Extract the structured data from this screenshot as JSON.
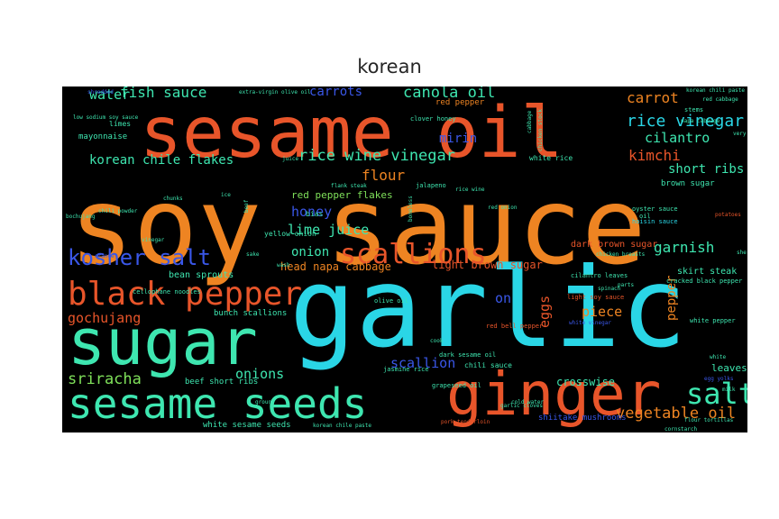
{
  "chart_data": {
    "type": "wordcloud",
    "title": "korean",
    "background": "#000000",
    "palette": {
      "orange": "#ee8422",
      "red_orange": "#e8552a",
      "cyan": "#2ad6e6",
      "teal": "#3ee6b0",
      "green": "#7fe05a",
      "blue": "#3a57e8"
    },
    "words": [
      {
        "text": "soy sauce",
        "color": "#ee8422"
      },
      {
        "text": "garlic",
        "color": "#2ad6e6"
      },
      {
        "text": "sesame oil",
        "color": "#e8552a"
      },
      {
        "text": "sugar",
        "color": "#3ee6b0"
      },
      {
        "text": "ginger",
        "color": "#e8552a"
      },
      {
        "text": "sesame seeds",
        "color": "#3ee6b0"
      },
      {
        "text": "black pepper",
        "color": "#e8552a"
      },
      {
        "text": "scallions",
        "color": "#e8552a"
      },
      {
        "text": "kosher salt",
        "color": "#3a57e8"
      },
      {
        "text": "salt",
        "color": "#3ee6b0"
      },
      {
        "text": "rice vinegar",
        "color": "#2ad6e6"
      },
      {
        "text": "canola oil",
        "color": "#3ee6b0"
      },
      {
        "text": "fish sauce",
        "color": "#3ee6b0"
      },
      {
        "text": "rice wine vinegar",
        "color": "#3ee6b0"
      },
      {
        "text": "korean chile flakes",
        "color": "#3ee6b0"
      },
      {
        "text": "vegetable oil",
        "color": "#ee8422"
      },
      {
        "text": "sriracha",
        "color": "#7fe05a"
      },
      {
        "text": "gochujang",
        "color": "#e8552a"
      },
      {
        "text": "carrots",
        "color": "#3a57e8"
      },
      {
        "text": "carrot",
        "color": "#ee8422"
      },
      {
        "text": "cilantro",
        "color": "#3ee6b0"
      },
      {
        "text": "water",
        "color": "#3ee6b0"
      },
      {
        "text": "mirin",
        "color": "#3a57e8"
      },
      {
        "text": "kimchi",
        "color": "#e8552a"
      },
      {
        "text": "flour",
        "color": "#ee8422"
      },
      {
        "text": "honey",
        "color": "#3a57e8"
      },
      {
        "text": "lime juice",
        "color": "#3ee6b0"
      },
      {
        "text": "onion",
        "color": "#3ee6b0"
      },
      {
        "text": "onions",
        "color": "#3ee6b0"
      },
      {
        "text": "garnish",
        "color": "#3ee6b0"
      },
      {
        "text": "short ribs",
        "color": "#3ee6b0"
      },
      {
        "text": "scallion",
        "color": "#3a57e8"
      },
      {
        "text": "eggs",
        "color": "#e8552a"
      },
      {
        "text": "piece",
        "color": "#ee8422"
      },
      {
        "text": "pepper",
        "color": "#ee8422"
      },
      {
        "text": "on",
        "color": "#3a57e8"
      },
      {
        "text": "head napa cabbage",
        "color": "#ee8422"
      },
      {
        "text": "light brown sugar",
        "color": "#e8552a"
      },
      {
        "text": "red pepper flakes",
        "color": "#7fe05a"
      },
      {
        "text": "crosswise",
        "color": "#3ee6b0"
      },
      {
        "text": "leaves",
        "color": "#3ee6b0"
      },
      {
        "text": "bean sprouts",
        "color": "#3ee6b0"
      },
      {
        "text": "dark brown sugar",
        "color": "#e8552a"
      },
      {
        "text": "skirt steak",
        "color": "#3ee6b0"
      },
      {
        "text": "brown sugar",
        "color": "#3ee6b0"
      },
      {
        "text": "beef short ribs",
        "color": "#3ee6b0"
      },
      {
        "text": "white sesame seeds",
        "color": "#3ee6b0"
      },
      {
        "text": "bunch scallions",
        "color": "#3ee6b0"
      },
      {
        "text": "white rice",
        "color": "#3ee6b0"
      },
      {
        "text": "mayonnaise",
        "color": "#3ee6b0"
      },
      {
        "text": "limes",
        "color": "#3ee6b0"
      },
      {
        "text": "chili sauce",
        "color": "#3ee6b0"
      },
      {
        "text": "oyster sauce",
        "color": "#3ee6b0"
      },
      {
        "text": "hoisin sauce",
        "color": "#2ad6e6"
      },
      {
        "text": "cellophane noodles",
        "color": "#3ee6b0"
      },
      {
        "text": "cracked black pepper",
        "color": "#3ee6b0"
      },
      {
        "text": "white pepper",
        "color": "#3ee6b0"
      },
      {
        "text": "chili powder",
        "color": "#3ee6b0"
      },
      {
        "text": "shiitake mushrooms",
        "color": "#3a57e8"
      },
      {
        "text": "korean chili paste",
        "color": "#3ee6b0"
      },
      {
        "text": "red cabbage",
        "color": "#3ee6b0"
      },
      {
        "text": "stems",
        "color": "#3ee6b0"
      },
      {
        "text": "napa cabbage",
        "color": "#3ee6b0"
      },
      {
        "text": "potatoes",
        "color": "#e8552a"
      },
      {
        "text": "sherry",
        "color": "#3ee6b0"
      },
      {
        "text": "oil",
        "color": "#3ee6b0"
      },
      {
        "text": "jalapeno",
        "color": "#3ee6b0"
      },
      {
        "text": "yellow onion",
        "color": "#3ee6b0"
      },
      {
        "text": "bias",
        "color": "#3ee6b0"
      },
      {
        "text": "red pepper",
        "color": "#ee8422"
      },
      {
        "text": "clover honey",
        "color": "#3ee6b0"
      },
      {
        "text": "light soy sauce",
        "color": "#e8552a"
      },
      {
        "text": "red bell pepper",
        "color": "#e8552a"
      },
      {
        "text": "cilantro leaves",
        "color": "#3ee6b0"
      },
      {
        "text": "olive oil",
        "color": "#3ee6b0"
      },
      {
        "text": "grapeseed oil",
        "color": "#3ee6b0"
      },
      {
        "text": "dark sesame oil",
        "color": "#3ee6b0"
      },
      {
        "text": "jasmine rice",
        "color": "#3ee6b0"
      },
      {
        "text": "pork tenderloin",
        "color": "#e8552a"
      },
      {
        "text": "flour tortillas",
        "color": "#3ee6b0"
      },
      {
        "text": "cornstarch",
        "color": "#3ee6b0"
      },
      {
        "text": "extra-virgin olive oil",
        "color": "#3ee6b0"
      },
      {
        "text": "low sodium soy sauce",
        "color": "#3ee6b0"
      },
      {
        "text": "bochujang",
        "color": "#3ee6b0"
      },
      {
        "text": "vinegar",
        "color": "#3ee6b0"
      },
      {
        "text": "chunks",
        "color": "#3ee6b0"
      },
      {
        "text": "rice wine",
        "color": "#3ee6b0"
      },
      {
        "text": "boneless",
        "color": "#3ee6b0"
      },
      {
        "text": "flank steak",
        "color": "#3ee6b0"
      },
      {
        "text": "chicken stock",
        "color": "#3ee6b0"
      },
      {
        "text": "chicken breasts",
        "color": "#3ee6b0"
      },
      {
        "text": "spinach",
        "color": "#3ee6b0"
      },
      {
        "text": "egg yolks",
        "color": "#3a57e8"
      },
      {
        "text": "white vinegar",
        "color": "#3a57e8"
      },
      {
        "text": "korean chile paste",
        "color": "#3ee6b0"
      },
      {
        "text": "shredded",
        "color": "#3a57e8"
      },
      {
        "text": "red onion",
        "color": "#3ee6b0"
      },
      {
        "text": "orange",
        "color": "#3a57e8"
      },
      {
        "text": "ground",
        "color": "#3ee6b0"
      },
      {
        "text": "cabbage",
        "color": "#3ee6b0"
      },
      {
        "text": "juice",
        "color": "#3ee6b0"
      },
      {
        "text": "beef",
        "color": "#3ee6b0"
      },
      {
        "text": "milk",
        "color": "#3ee6b0"
      },
      {
        "text": "cold water",
        "color": "#3ee6b0"
      },
      {
        "text": "garlic cloves",
        "color": "#3ee6b0"
      },
      {
        "text": "white",
        "color": "#3ee6b0"
      },
      {
        "text": "wash",
        "color": "#3ee6b0"
      },
      {
        "text": "parts",
        "color": "#3ee6b0"
      },
      {
        "text": "sake",
        "color": "#3ee6b0"
      },
      {
        "text": "cook",
        "color": "#3ee6b0"
      },
      {
        "text": "ice",
        "color": "#3ee6b0"
      },
      {
        "text": "very",
        "color": "#3ee6b0"
      }
    ]
  }
}
